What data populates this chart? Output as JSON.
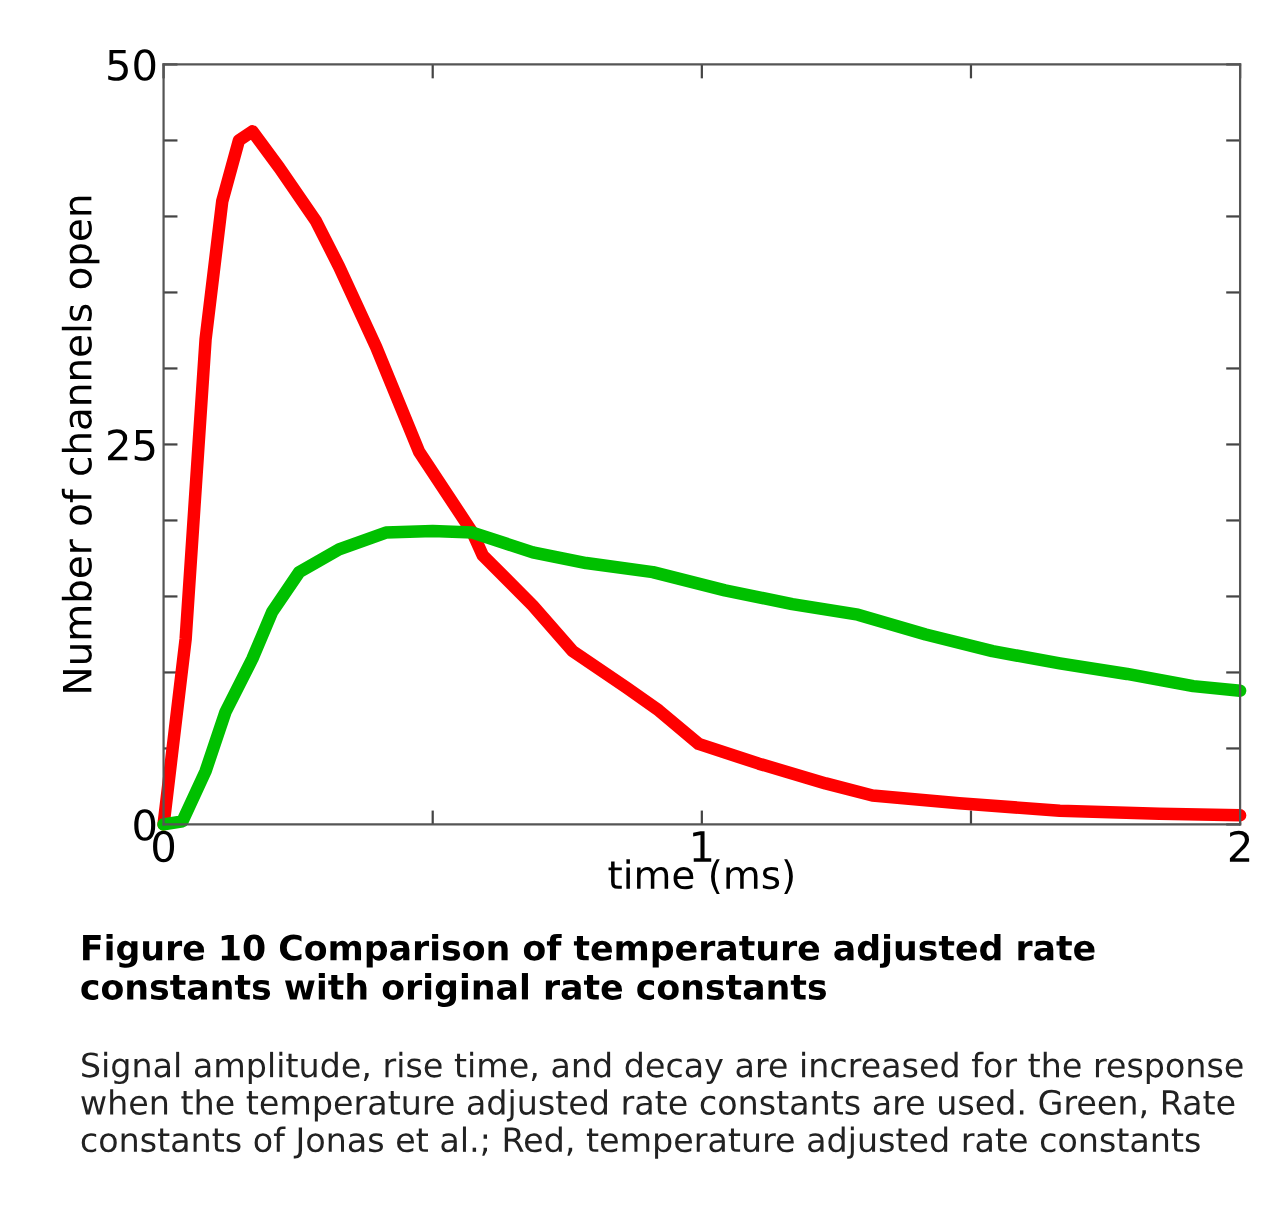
{
  "chart_data": {
    "type": "line",
    "title": "Figure 10 Comparison of temperature adjusted rate constants with original rate constants",
    "xlabel": "time (ms)",
    "ylabel": "Number of channels open",
    "annotations": [
      "Signal amplitude, rise time, and decay are increased for the response when the temperature adjusted rate constants are used. Green, Rate constants of Jonas et al.; Red, temperature adjusted rate constants"
    ],
    "series": [
      {
        "color": "#ff0000",
        "x": [
          0,
          0.041,
          0.078,
          0.109,
          0.14,
          0.165,
          0.215,
          0.283,
          0.326,
          0.395,
          0.475,
          0.574,
          0.593,
          0.686,
          0.76,
          0.86,
          0.92,
          0.994,
          1.106,
          1.23,
          1.317,
          1.478,
          1.665,
          1.85,
          2.0
        ],
        "values": [
          0,
          12.2,
          31.9,
          41,
          45,
          45.6,
          43.2,
          39.7,
          36.7,
          31.4,
          24.5,
          19.2,
          17.7,
          14.4,
          11.4,
          9,
          7.5,
          5.3,
          4.0,
          2.7,
          1.9,
          1.4,
          0.9,
          0.7,
          0.6
        ]
      },
      {
        "color": "#00c000",
        "x": [
          0,
          0.035,
          0.078,
          0.115,
          0.165,
          0.202,
          0.252,
          0.326,
          0.413,
          0.5,
          0.574,
          0.686,
          0.785,
          0.909,
          1.043,
          1.168,
          1.29,
          1.416,
          1.54,
          1.665,
          1.79,
          1.913,
          2.0
        ],
        "values": [
          0,
          0.2,
          3.5,
          7.4,
          10.9,
          14,
          16.6,
          18.1,
          19.2,
          19.3,
          19.2,
          17.9,
          17.2,
          16.6,
          15.4,
          14.5,
          13.8,
          12.5,
          11.4,
          10.6,
          9.9,
          9.1,
          8.8
        ]
      }
    ],
    "xlim": [
      0,
      2
    ],
    "ylim": [
      0,
      50
    ],
    "xticks": [
      0,
      {
        "value": 0.5,
        "label": null
      },
      1,
      {
        "value": 1.5,
        "label": null
      },
      2
    ],
    "yticks": [
      0,
      {
        "value": 5,
        "label": null
      },
      {
        "value": 10,
        "label": null
      },
      {
        "value": 15,
        "label": null
      },
      {
        "value": 20,
        "label": null
      },
      25,
      {
        "value": 30,
        "label": null
      },
      {
        "value": 35,
        "label": null
      },
      {
        "value": 40,
        "label": null
      },
      {
        "value": 45,
        "label": null
      },
      50
    ],
    "grid": false,
    "marker": "none",
    "line_style": "solid"
  }
}
